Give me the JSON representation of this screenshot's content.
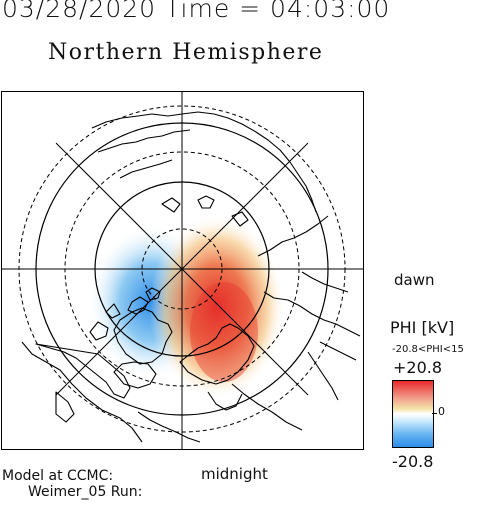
{
  "header": {
    "datetime": "03/28/2020 Time = 04:03:00",
    "hemisphere": "Northern Hemisphere"
  },
  "map": {
    "dawn_label": "dawn",
    "midnight_label": "midnight"
  },
  "footer": {
    "model_line1": "Model at CCMC:",
    "model_line2": "Weimer_05 Run:"
  },
  "colorbar": {
    "title": "PHI [kV]",
    "range_text": "-20.8<PHI<15",
    "max_label": "+20.8",
    "zero_label": "0",
    "min_label": "-20.8",
    "colors": {
      "positive": "#e8282a",
      "neutral": "#ffffff",
      "negative": "#2a8ce8"
    }
  }
}
